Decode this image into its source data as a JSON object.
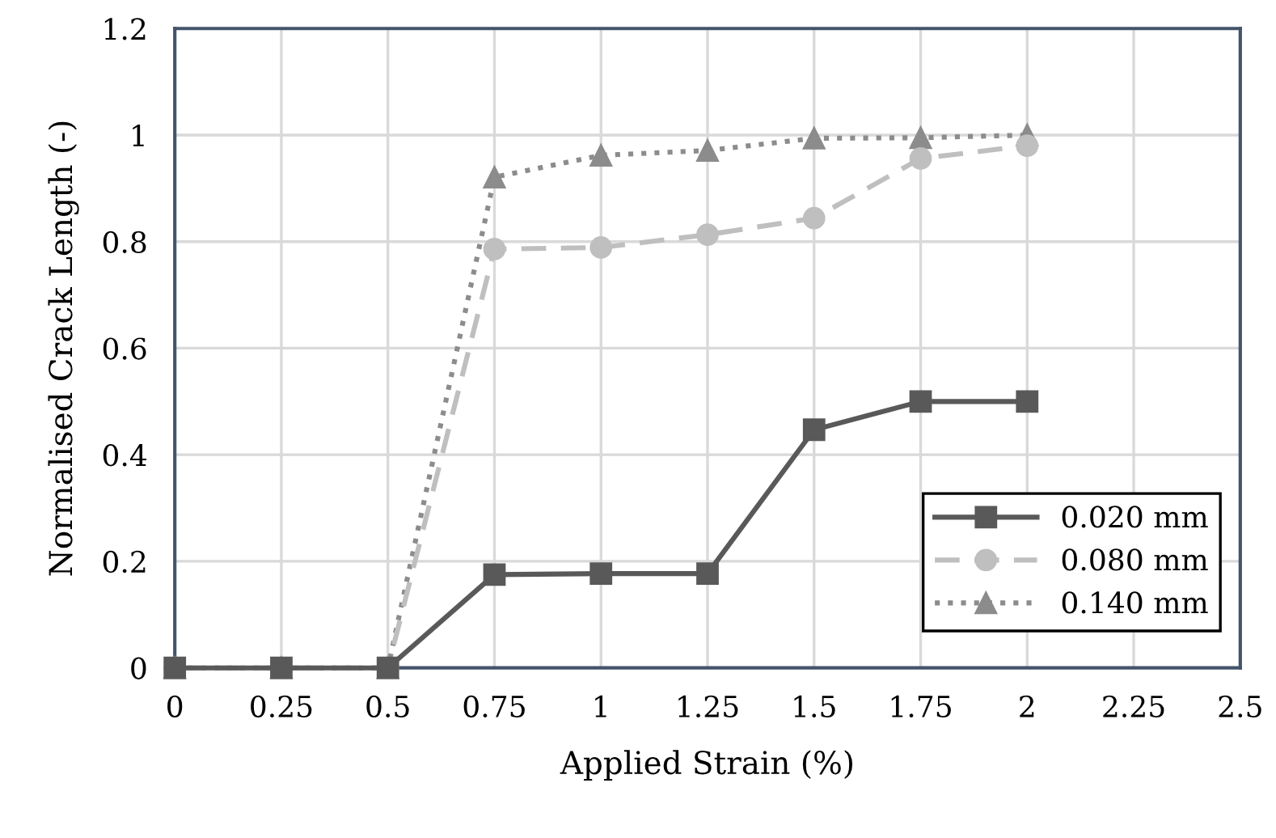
{
  "chart_data": {
    "type": "line",
    "xlabel": "Applied Strain (%)",
    "ylabel": "Normalised Crack Length (-)",
    "x": [
      0,
      0.25,
      0.5,
      0.75,
      1,
      1.25,
      1.5,
      1.75,
      2
    ],
    "series": [
      {
        "name": "0.020 mm",
        "color": "#595959",
        "marker": "square",
        "line_style": "solid",
        "values": [
          0,
          0,
          0,
          0.175,
          0.177,
          0.177,
          0.447,
          0.5,
          0.5
        ]
      },
      {
        "name": "0.080 mm",
        "color": "#bfbfbf",
        "marker": "circle",
        "line_style": "dashed",
        "values": [
          0,
          0,
          0,
          0.786,
          0.789,
          0.813,
          0.844,
          0.956,
          0.98
        ]
      },
      {
        "name": "0.140 mm",
        "color": "#8c8c8c",
        "marker": "triangle",
        "line_style": "dotted",
        "values": [
          0,
          0,
          0,
          0.921,
          0.962,
          0.971,
          0.994,
          0.995,
          1.0
        ]
      }
    ],
    "xlim": [
      0,
      2.5
    ],
    "xticks": [
      0,
      0.25,
      0.5,
      0.75,
      1,
      1.25,
      1.5,
      1.75,
      2,
      2.25,
      2.5
    ],
    "ylim": [
      0,
      1.2
    ],
    "yticks": [
      0,
      0.2,
      0.4,
      0.6,
      0.8,
      1,
      1.2
    ],
    "grid": true,
    "legend": "bottom right"
  }
}
